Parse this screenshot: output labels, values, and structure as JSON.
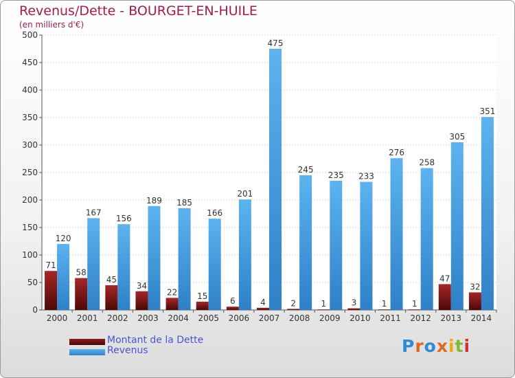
{
  "title": "Revenus/Dette - BOURGET-EN-HUILE",
  "subtitle": "(en milliers d'€)",
  "legend": [
    {
      "label": "Montant de la Dette",
      "color": "#6b0d0d"
    },
    {
      "label": "Revenus",
      "color": "#4aa3e6"
    }
  ],
  "logo": {
    "text": "Proxiti",
    "colors": [
      "#2d8ad6",
      "#e0671e",
      "#2d8ad6",
      "#e0671e",
      "#f1a80a",
      "#7bbd2f",
      "#d1312b"
    ]
  },
  "chart_data": {
    "type": "bar",
    "categories": [
      "2000",
      "2001",
      "2002",
      "2003",
      "2004",
      "2005",
      "2006",
      "2007",
      "2008",
      "2009",
      "2010",
      "2011",
      "2012",
      "2013",
      "2014"
    ],
    "series": [
      {
        "name": "Montant de la Dette",
        "color": "#6b0d0d",
        "values": [
          71,
          58,
          45,
          34,
          22,
          15,
          6,
          4,
          2,
          1,
          3,
          1,
          1,
          47,
          32
        ]
      },
      {
        "name": "Revenus",
        "color": "#4aa3e6",
        "values": [
          120,
          167,
          156,
          189,
          185,
          166,
          201,
          475,
          245,
          235,
          233,
          276,
          258,
          305,
          351
        ]
      }
    ],
    "ylim": [
      0,
      500
    ],
    "yticks": [
      0,
      50,
      100,
      150,
      200,
      250,
      300,
      350,
      400,
      450,
      500
    ],
    "grid": true,
    "legend_position": "bottom-left"
  }
}
